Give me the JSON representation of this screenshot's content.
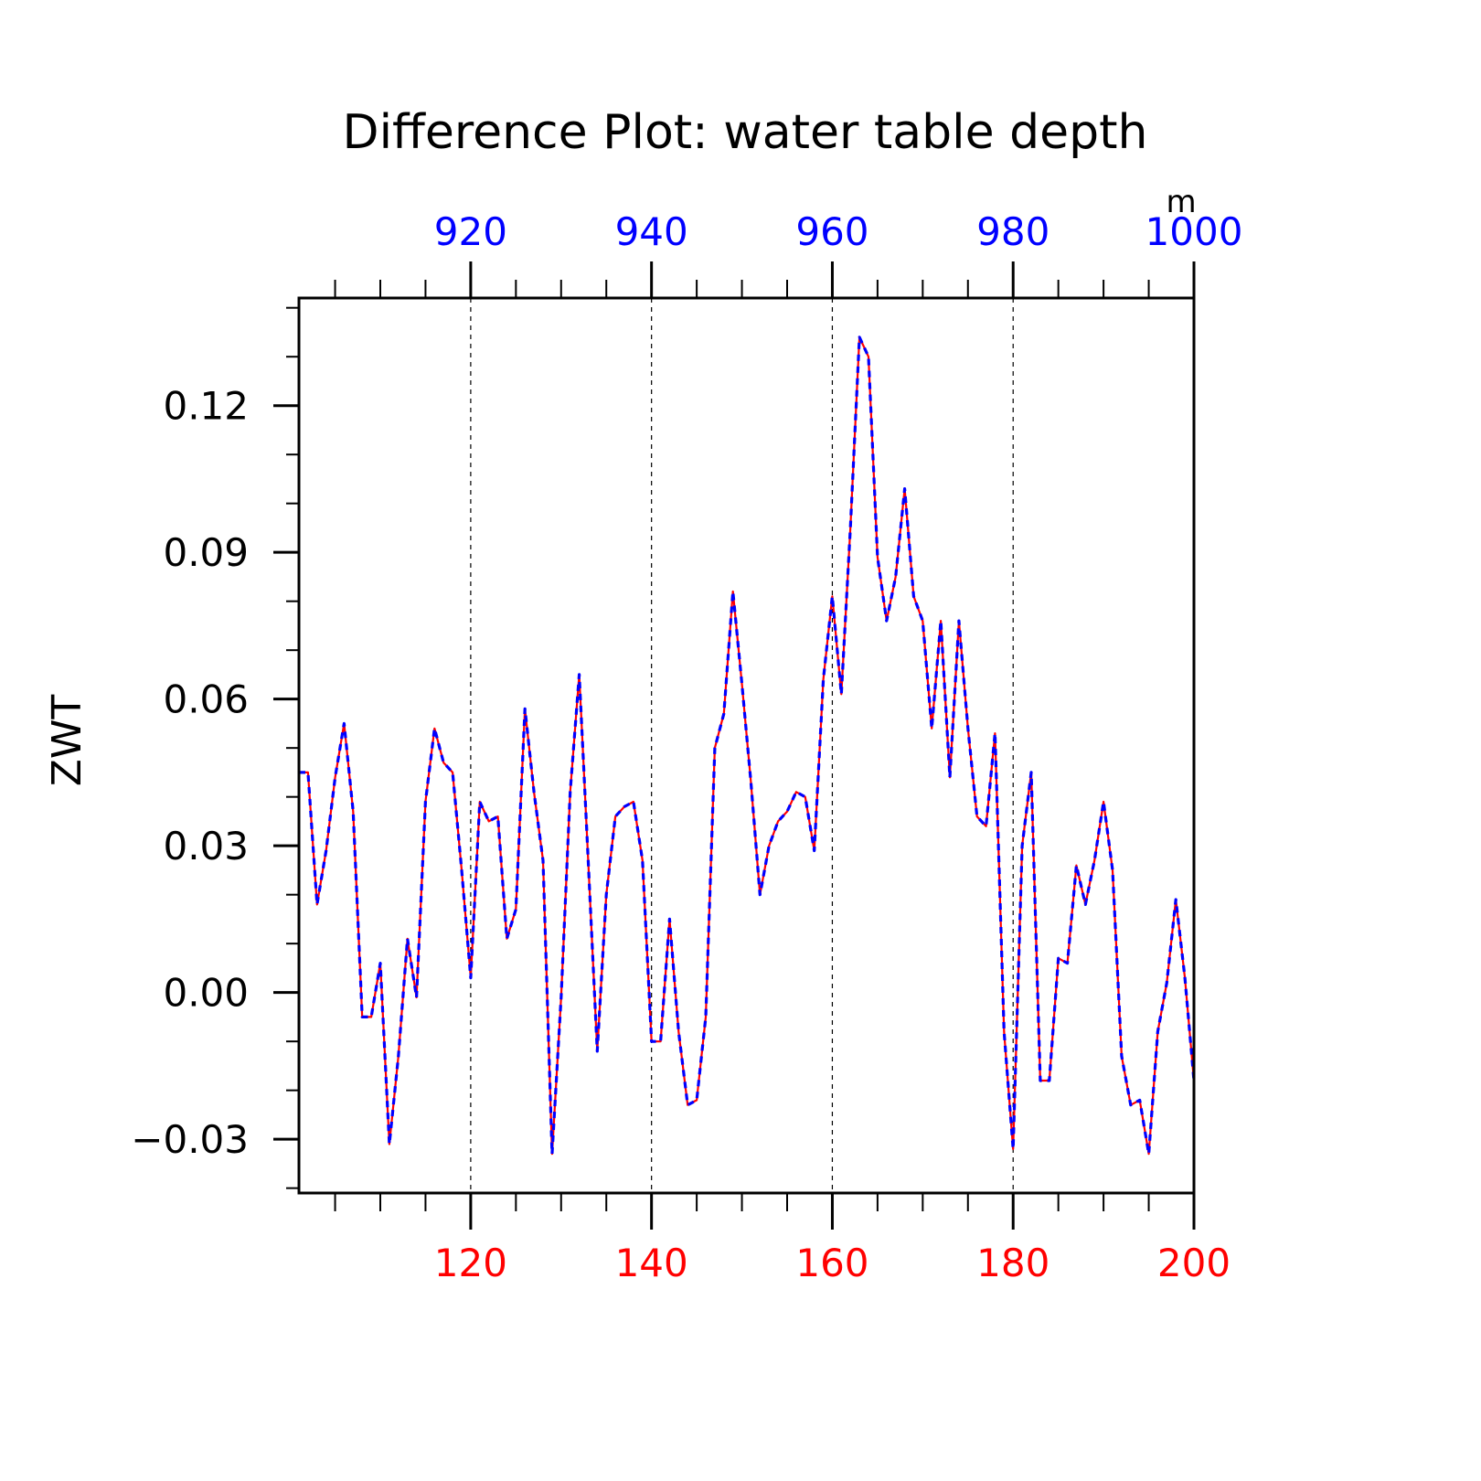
{
  "chart_data": {
    "type": "line",
    "title": "Difference Plot: water table depth",
    "units": "m",
    "ylabel": "ZWT",
    "xlabel": "",
    "xlim": [
      101,
      200
    ],
    "ylim": [
      -0.041,
      0.142
    ],
    "x_ticks": [
      120,
      140,
      160,
      180,
      200
    ],
    "x_tick_labels": [
      "120",
      "140",
      "160",
      "180",
      "200"
    ],
    "x_top_offset": 800,
    "x_top_tick_labels": [
      "920",
      "940",
      "960",
      "980",
      "1000"
    ],
    "y_ticks": [
      -0.03,
      0.0,
      0.03,
      0.06,
      0.09,
      0.12
    ],
    "y_tick_labels": [
      "−0.03",
      "0.00",
      "0.03",
      "0.06",
      "0.09",
      "0.12"
    ],
    "grid": "dashed vertical lines at major x ticks",
    "colors": {
      "bottom_axis": "#ff0000",
      "top_axis": "#0000ff",
      "series_1": "#ff0000",
      "series_2": "#0000ff",
      "frame": "#000000"
    },
    "x": [
      101,
      102,
      103,
      104,
      105,
      106,
      107,
      108,
      109,
      110,
      111,
      112,
      113,
      114,
      115,
      116,
      117,
      118,
      119,
      120,
      121,
      122,
      123,
      124,
      125,
      126,
      127,
      128,
      129,
      130,
      131,
      132,
      133,
      134,
      135,
      136,
      137,
      138,
      139,
      140,
      141,
      142,
      143,
      144,
      145,
      146,
      147,
      148,
      149,
      150,
      151,
      152,
      153,
      154,
      155,
      156,
      157,
      158,
      159,
      160,
      161,
      162,
      163,
      164,
      165,
      166,
      167,
      168,
      169,
      170,
      171,
      172,
      173,
      174,
      175,
      176,
      177,
      178,
      179,
      180,
      181,
      182,
      183,
      184,
      185,
      186,
      187,
      188,
      189,
      190,
      191,
      192,
      193,
      194,
      195,
      196,
      197,
      198,
      199,
      200
    ],
    "series": [
      {
        "style": "solid",
        "values": [
          0.045,
          0.045,
          0.018,
          0.029,
          0.044,
          0.055,
          0.037,
          -0.005,
          -0.005,
          0.006,
          -0.031,
          -0.013,
          0.011,
          -0.001,
          0.039,
          0.054,
          0.047,
          0.045,
          0.025,
          0.003,
          0.039,
          0.035,
          0.036,
          0.011,
          0.017,
          0.058,
          0.041,
          0.027,
          -0.033,
          -0.001,
          0.041,
          0.065,
          0.027,
          -0.012,
          0.02,
          0.036,
          0.038,
          0.039,
          0.027,
          -0.01,
          -0.01,
          0.015,
          -0.008,
          -0.023,
          -0.022,
          -0.005,
          0.05,
          0.057,
          0.082,
          0.063,
          0.043,
          0.02,
          0.03,
          0.035,
          0.037,
          0.041,
          0.04,
          0.029,
          0.064,
          0.081,
          0.061,
          0.095,
          0.134,
          0.13,
          0.089,
          0.076,
          0.085,
          0.103,
          0.081,
          0.076,
          0.054,
          0.076,
          0.044,
          0.076,
          0.054,
          0.036,
          0.034,
          0.053,
          -0.008,
          -0.032,
          0.03,
          0.045,
          -0.018,
          -0.018,
          0.007,
          0.006,
          0.026,
          0.018,
          0.027,
          0.039,
          0.025,
          -0.013,
          -0.023,
          -0.022,
          -0.033,
          -0.008,
          0.002,
          0.019,
          0.003,
          -0.018
        ]
      },
      {
        "style": "dashed",
        "values": [
          0.045,
          0.045,
          0.018,
          0.029,
          0.044,
          0.055,
          0.037,
          -0.005,
          -0.005,
          0.006,
          -0.031,
          -0.013,
          0.011,
          -0.001,
          0.039,
          0.054,
          0.047,
          0.045,
          0.025,
          0.003,
          0.039,
          0.035,
          0.036,
          0.011,
          0.017,
          0.058,
          0.041,
          0.027,
          -0.033,
          -0.001,
          0.041,
          0.065,
          0.027,
          -0.012,
          0.02,
          0.036,
          0.038,
          0.039,
          0.027,
          -0.01,
          -0.01,
          0.015,
          -0.008,
          -0.023,
          -0.022,
          -0.005,
          0.05,
          0.057,
          0.082,
          0.063,
          0.043,
          0.02,
          0.03,
          0.035,
          0.037,
          0.041,
          0.04,
          0.029,
          0.064,
          0.081,
          0.061,
          0.095,
          0.134,
          0.13,
          0.089,
          0.076,
          0.085,
          0.103,
          0.081,
          0.076,
          0.054,
          0.076,
          0.044,
          0.076,
          0.054,
          0.036,
          0.034,
          0.053,
          -0.008,
          -0.032,
          0.03,
          0.045,
          -0.018,
          -0.018,
          0.007,
          0.006,
          0.026,
          0.018,
          0.027,
          0.039,
          0.025,
          -0.013,
          -0.023,
          -0.022,
          -0.033,
          -0.008,
          0.002,
          0.019,
          0.003,
          -0.018
        ]
      }
    ]
  }
}
